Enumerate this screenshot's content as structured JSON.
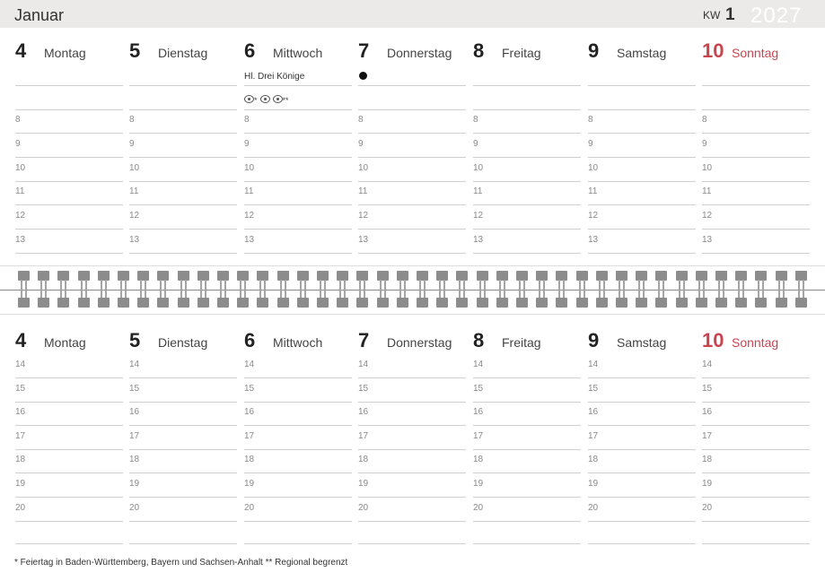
{
  "header": {
    "month": "Januar",
    "kw_label": "KW",
    "kw_number": "1",
    "year": "2027"
  },
  "days": [
    {
      "num": "4",
      "name": "Montag",
      "sunday": false
    },
    {
      "num": "5",
      "name": "Dienstag",
      "sunday": false
    },
    {
      "num": "6",
      "name": "Mittwoch",
      "sunday": false
    },
    {
      "num": "7",
      "name": "Donnerstag",
      "sunday": false
    },
    {
      "num": "8",
      "name": "Freitag",
      "sunday": false
    },
    {
      "num": "9",
      "name": "Samstag",
      "sunday": false
    },
    {
      "num": "10",
      "name": "Sonntag",
      "sunday": true
    }
  ],
  "events": {
    "holiday": "Hl. Drei Könige",
    "holiday_icons": [
      "*",
      "",
      "**"
    ],
    "moon_phase_icon": "full-moon-dot"
  },
  "hours_top": [
    "8",
    "9",
    "10",
    "11",
    "12",
    "13"
  ],
  "hours_bottom": [
    "14",
    "15",
    "16",
    "17",
    "18",
    "19",
    "20"
  ],
  "colors": {
    "sunday": "#c8444f",
    "header_bg": "#ebeae8"
  },
  "footnote": "* Feiertag in Baden-Württemberg, Bayern und Sachsen-Anhalt  ** Regional begrenzt"
}
